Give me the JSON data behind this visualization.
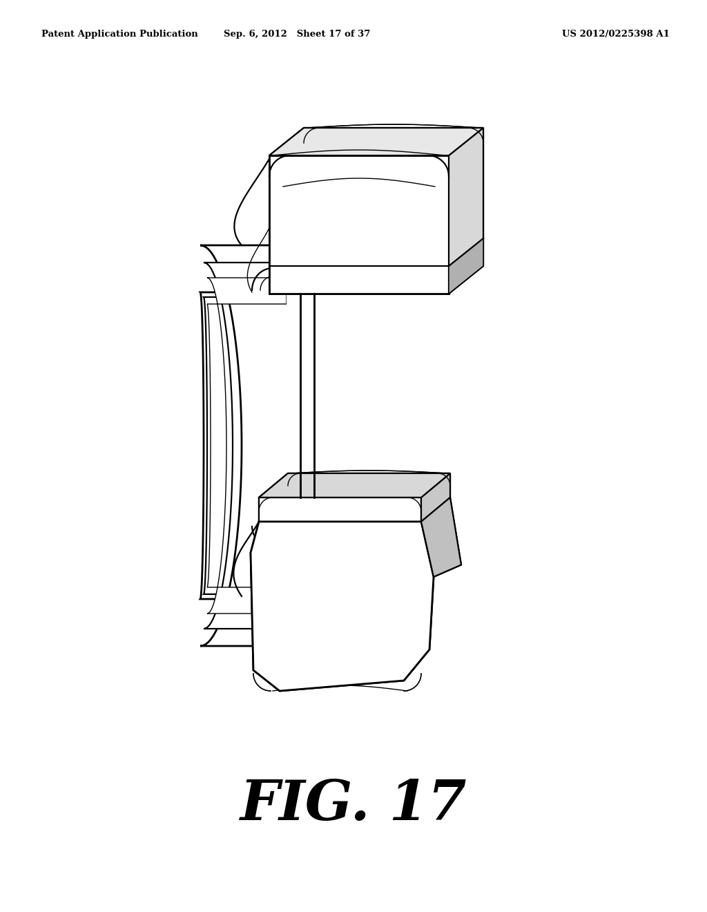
{
  "background_color": "#ffffff",
  "header_left": "Patent Application Publication",
  "header_mid": "Sep. 6, 2012   Sheet 17 of 37",
  "header_right": "US 2012/0225398 A1",
  "figure_label": "FIG. 17",
  "line_color": "#000000",
  "lw": 1.6,
  "lw_thin": 1.0,
  "lw_thick": 2.0,
  "fig_width": 10.24,
  "fig_height": 13.2,
  "dpi": 100
}
